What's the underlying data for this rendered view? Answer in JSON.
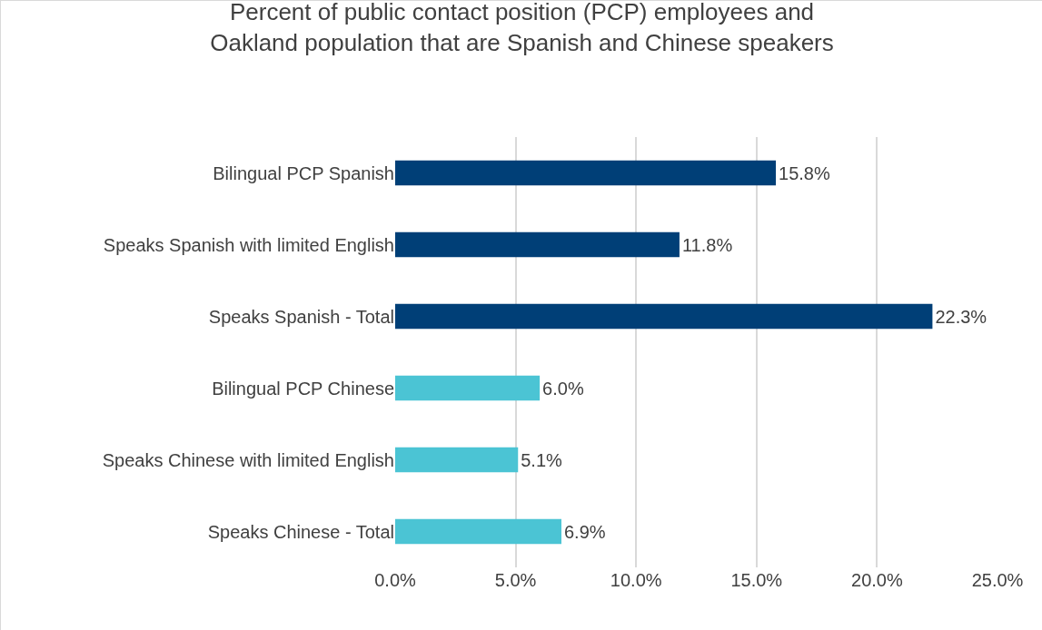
{
  "chart_data": {
    "type": "bar",
    "orientation": "horizontal",
    "title": "Percent of public contact position (PCP) employees and\nOakland population that are Spanish and Chinese speakers",
    "categories": [
      "Bilingual PCP Spanish",
      "Speaks Spanish with limited English",
      "Speaks Spanish - Total",
      "Bilingual PCP Chinese",
      "Speaks Chinese with limited English",
      "Speaks Chinese - Total"
    ],
    "values": [
      15.8,
      11.8,
      22.3,
      6.0,
      5.1,
      6.9
    ],
    "value_labels": [
      "15.8%",
      "11.8%",
      "22.3%",
      "6.0%",
      "5.1%",
      "6.9%"
    ],
    "colors": [
      "#003f77",
      "#003f77",
      "#003f77",
      "#4bc4d4",
      "#4bc4d4",
      "#4bc4d4"
    ],
    "xlim": [
      0,
      25
    ],
    "xticks": [
      {
        "value": 0,
        "label": "0.0%"
      },
      {
        "value": 5,
        "label": "5.0%"
      },
      {
        "value": 10,
        "label": "10.0%"
      },
      {
        "value": 15,
        "label": "15.0%"
      },
      {
        "value": 20,
        "label": "20.0%"
      },
      {
        "value": 25,
        "label": "25.0%"
      }
    ],
    "grid": "x"
  }
}
